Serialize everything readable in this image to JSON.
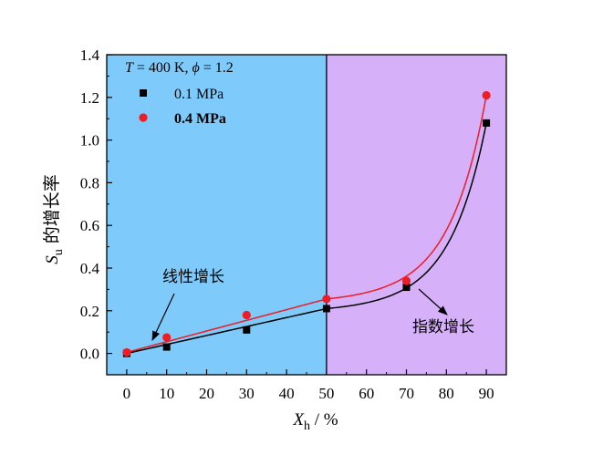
{
  "chart_data": {
    "type": "line",
    "xlabel_main": "X",
    "xlabel_sub": "h",
    "xlabel_unit": " / %",
    "ylabel_main": "S",
    "ylabel_sub": "u",
    "ylabel_text": " 的增长率",
    "xlim": [
      -5,
      95
    ],
    "ylim": [
      -0.1,
      1.4
    ],
    "xticks": [
      0,
      10,
      20,
      30,
      40,
      50,
      60,
      70,
      80,
      90
    ],
    "yticks": [
      0.0,
      0.2,
      0.4,
      0.6,
      0.8,
      1.0,
      1.2,
      1.4
    ],
    "region_split_x": 50,
    "regions": [
      {
        "label": "线性增长",
        "color": "#7ecbfb"
      },
      {
        "label": "指数增长",
        "color": "#d6b1f9"
      }
    ],
    "condition_text": {
      "T_sym": "T",
      "T_val": " = 400 K, ",
      "phi_sym": "ϕ",
      "phi_val": " = 1.2"
    },
    "series": [
      {
        "name": "0.1 MPa",
        "marker": "square",
        "color": "#000000",
        "bold": false,
        "x": [
          0,
          10,
          30,
          50,
          70,
          90
        ],
        "y": [
          0.0,
          0.03,
          0.11,
          0.21,
          0.31,
          1.08
        ]
      },
      {
        "name": "0.4 MPa",
        "marker": "circle",
        "color": "#ee1c25",
        "bold": true,
        "x": [
          0,
          10,
          30,
          50,
          70,
          90
        ],
        "y": [
          0.005,
          0.075,
          0.18,
          0.255,
          0.34,
          1.21
        ]
      }
    ]
  }
}
